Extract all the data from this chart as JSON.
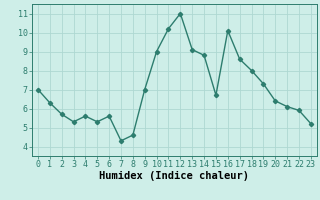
{
  "x": [
    0,
    1,
    2,
    3,
    4,
    5,
    6,
    7,
    8,
    9,
    10,
    11,
    12,
    13,
    14,
    15,
    16,
    17,
    18,
    19,
    20,
    21,
    22,
    23
  ],
  "y": [
    7.0,
    6.3,
    5.7,
    5.3,
    5.6,
    5.3,
    5.6,
    4.3,
    4.6,
    7.0,
    9.0,
    10.2,
    11.0,
    9.1,
    8.8,
    6.7,
    10.1,
    8.6,
    8.0,
    7.3,
    6.4,
    6.1,
    5.9,
    5.2
  ],
  "xlabel": "Humidex (Indice chaleur)",
  "ylim": [
    3.5,
    11.5
  ],
  "xlim": [
    -0.5,
    23.5
  ],
  "yticks": [
    4,
    5,
    6,
    7,
    8,
    9,
    10,
    11
  ],
  "xticks": [
    0,
    1,
    2,
    3,
    4,
    5,
    6,
    7,
    8,
    9,
    10,
    11,
    12,
    13,
    14,
    15,
    16,
    17,
    18,
    19,
    20,
    21,
    22,
    23
  ],
  "xtick_labels": [
    "0",
    "1",
    "2",
    "3",
    "4",
    "5",
    "6",
    "7",
    "8",
    "9",
    "10",
    "11",
    "12",
    "13",
    "14",
    "15",
    "16",
    "17",
    "18",
    "19",
    "20",
    "21",
    "22",
    "23"
  ],
  "line_color": "#2d7d6e",
  "bg_color": "#ceeee8",
  "grid_color": "#aed8d2",
  "marker": "D",
  "marker_size": 2.2,
  "line_width": 1.0,
  "tick_fontsize": 6.0,
  "xlabel_fontsize": 7.5,
  "ytick_labels": [
    "4",
    "5",
    "6",
    "7",
    "8",
    "9",
    "10",
    "11"
  ]
}
